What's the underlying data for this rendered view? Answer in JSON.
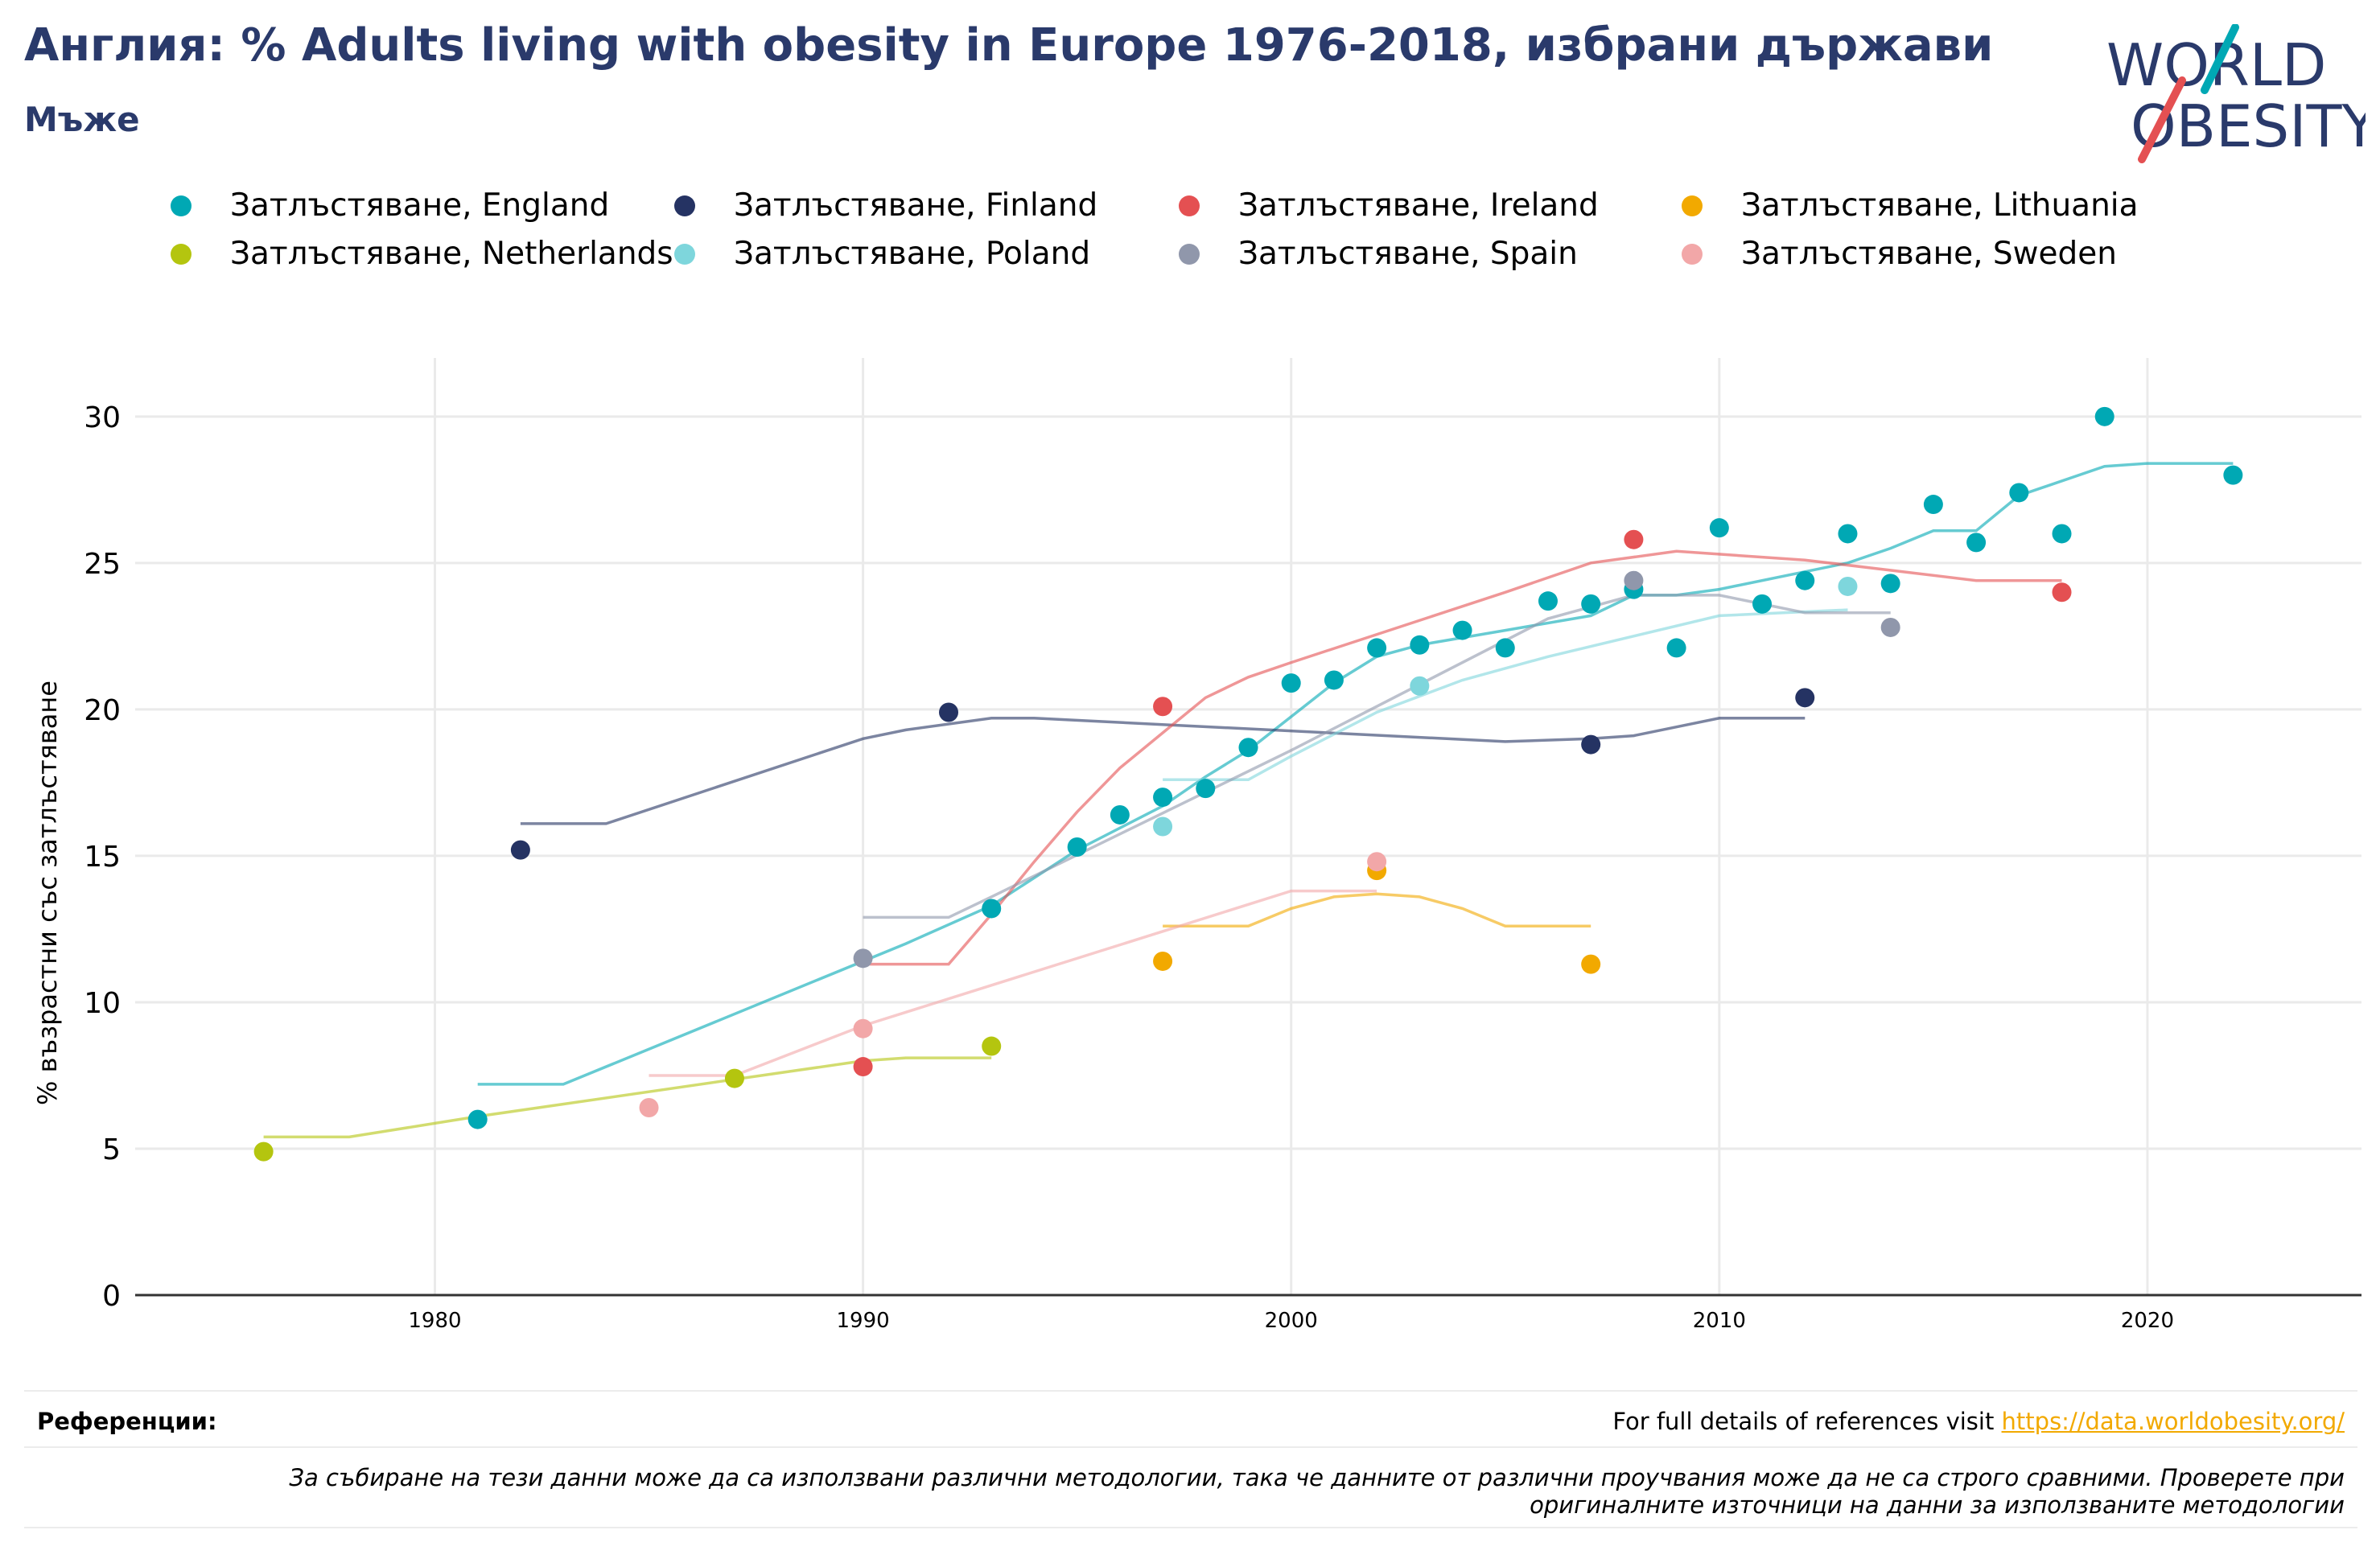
{
  "header": {
    "title": "Англия: % Adults living with obesity in Europe 1976-2018, избрани държави",
    "subtitle": "Мъже",
    "logo_line1": "WORLD",
    "logo_line2": "OBESITY"
  },
  "footer": {
    "references_label": "Референции:",
    "references_text": "For full details of references visit ",
    "references_link": "https://data.worldobesity.org/",
    "note": "За събиране на тези данни може да са използвани различни методологии, така че данните от различни проучвания може да не са строго сравними. Проверете при оригиналните източници на данни за използваните методологии"
  },
  "chart_data": {
    "type": "scatter",
    "title": "Англия: % Adults living with obesity in Europe 1976-2018, избрани държави",
    "subtitle": "Мъже",
    "xlabel": "",
    "ylabel": "% възрастни със затлъстяване",
    "xlim": [
      1973,
      2025
    ],
    "ylim": [
      0,
      32
    ],
    "xticks": [
      1980,
      1990,
      2000,
      2010,
      2020
    ],
    "yticks": [
      0,
      5,
      10,
      15,
      20,
      25,
      30
    ],
    "grid": true,
    "legend_position": "top",
    "series": [
      {
        "name": "Затлъстяване, England",
        "color": "#00a8b4",
        "points": [
          [
            1981,
            6
          ],
          [
            1993,
            13.2
          ],
          [
            1995,
            15.3
          ],
          [
            1996,
            16.4
          ],
          [
            1997,
            17
          ],
          [
            1998,
            17.3
          ],
          [
            1999,
            18.7
          ],
          [
            2000,
            20.9
          ],
          [
            2001,
            21
          ],
          [
            2002,
            22.1
          ],
          [
            2003,
            22.2
          ],
          [
            2004,
            22.7
          ],
          [
            2005,
            22.1
          ],
          [
            2006,
            23.7
          ],
          [
            2007,
            23.6
          ],
          [
            2008,
            24.1
          ],
          [
            2009,
            22.1
          ],
          [
            2010,
            26.2
          ],
          [
            2011,
            23.6
          ],
          [
            2012,
            24.4
          ],
          [
            2013,
            26
          ],
          [
            2014,
            24.3
          ],
          [
            2015,
            27
          ],
          [
            2016,
            25.7
          ],
          [
            2017,
            27.4
          ],
          [
            2018,
            26
          ],
          [
            2019,
            30
          ],
          [
            2022,
            28
          ]
        ],
        "trend": [
          [
            1981,
            7.2
          ],
          [
            1983,
            7.2
          ],
          [
            1991,
            12
          ],
          [
            1993,
            13.3
          ],
          [
            1995,
            15.2
          ],
          [
            1997,
            16.7
          ],
          [
            1998,
            17.7
          ],
          [
            1999,
            18.6
          ],
          [
            2001,
            20.9
          ],
          [
            2002,
            21.8
          ],
          [
            2003,
            22.2
          ],
          [
            2005,
            22.7
          ],
          [
            2007,
            23.2
          ],
          [
            2008,
            23.9
          ],
          [
            2009,
            23.9
          ],
          [
            2010,
            24.1
          ],
          [
            2013,
            25
          ],
          [
            2014,
            25.5
          ],
          [
            2015,
            26.1
          ],
          [
            2016,
            26.1
          ],
          [
            2017,
            27.3
          ],
          [
            2019,
            28.3
          ],
          [
            2020,
            28.4
          ],
          [
            2022,
            28.4
          ]
        ]
      },
      {
        "name": "Затлъстяване, Finland",
        "color": "#253363",
        "points": [
          [
            1982,
            15.2
          ],
          [
            1992,
            19.9
          ],
          [
            2007,
            18.8
          ],
          [
            2012,
            20.4
          ]
        ],
        "trend": [
          [
            1982,
            16.1
          ],
          [
            1984,
            16.1
          ],
          [
            1990,
            19
          ],
          [
            1991,
            19.3
          ],
          [
            1993,
            19.7
          ],
          [
            1994,
            19.7
          ],
          [
            2005,
            18.9
          ],
          [
            2007,
            19
          ],
          [
            2008,
            19.1
          ],
          [
            2009,
            19.4
          ],
          [
            2010,
            19.7
          ],
          [
            2012,
            19.7
          ]
        ]
      },
      {
        "name": "Затлъстяване, Ireland",
        "color": "#e45052",
        "points": [
          [
            1990,
            7.8
          ],
          [
            1997,
            20.1
          ],
          [
            2008,
            25.8
          ],
          [
            2018,
            24
          ]
        ],
        "trend": [
          [
            1990,
            11.3
          ],
          [
            1992,
            11.3
          ],
          [
            1993,
            13
          ],
          [
            1994,
            14.8
          ],
          [
            1995,
            16.5
          ],
          [
            1996,
            18
          ],
          [
            1997,
            19.2
          ],
          [
            1998,
            20.4
          ],
          [
            1999,
            21.1
          ],
          [
            2000,
            21.6
          ],
          [
            2005,
            24
          ],
          [
            2007,
            25
          ],
          [
            2009,
            25.4
          ],
          [
            2012,
            25.1
          ],
          [
            2016,
            24.4
          ],
          [
            2018,
            24.4
          ]
        ]
      },
      {
        "name": "Затлъстяване, Lithuania",
        "color": "#f2a900",
        "points": [
          [
            1997,
            11.4
          ],
          [
            2002,
            14.5
          ],
          [
            2007,
            11.3
          ]
        ],
        "trend": [
          [
            1997,
            12.6
          ],
          [
            1999,
            12.6
          ],
          [
            2000,
            13.2
          ],
          [
            2001,
            13.6
          ],
          [
            2002,
            13.7
          ],
          [
            2003,
            13.6
          ],
          [
            2004,
            13.2
          ],
          [
            2005,
            12.6
          ],
          [
            2007,
            12.6
          ]
        ]
      },
      {
        "name": "Затлъстяване, Netherlands",
        "color": "#b4c50f",
        "points": [
          [
            1976,
            4.9
          ],
          [
            1987,
            7.4
          ],
          [
            1993,
            8.5
          ]
        ],
        "trend": [
          [
            1976,
            5.4
          ],
          [
            1978,
            5.4
          ],
          [
            1981,
            6.1
          ],
          [
            1990,
            8
          ],
          [
            1991,
            8.1
          ],
          [
            1993,
            8.1
          ]
        ]
      },
      {
        "name": "Затлъстяване, Poland",
        "color": "#7ed6dc",
        "points": [
          [
            1997,
            16
          ],
          [
            2003,
            20.8
          ],
          [
            2013,
            24.2
          ]
        ],
        "trend": [
          [
            1997,
            17.6
          ],
          [
            1999,
            17.6
          ],
          [
            2000,
            18.4
          ],
          [
            2002,
            19.9
          ],
          [
            2004,
            21
          ],
          [
            2006,
            21.8
          ],
          [
            2010,
            23.2
          ],
          [
            2013,
            23.4
          ]
        ]
      },
      {
        "name": "Затлъстяване, Spain",
        "color": "#9097ab",
        "points": [
          [
            1990,
            11.5
          ],
          [
            2008,
            24.4
          ],
          [
            2014,
            22.8
          ]
        ],
        "trend": [
          [
            1990,
            12.9
          ],
          [
            1992,
            12.9
          ],
          [
            1993,
            13.6
          ],
          [
            2000,
            18.6
          ],
          [
            2006,
            23.1
          ],
          [
            2008,
            23.9
          ],
          [
            2010,
            23.9
          ],
          [
            2012,
            23.3
          ],
          [
            2014,
            23.3
          ]
        ]
      },
      {
        "name": "Затлъстяване, Sweden",
        "color": "#f2a7a8",
        "points": [
          [
            1985,
            6.4
          ],
          [
            1990,
            9.1
          ],
          [
            2002,
            14.8
          ]
        ],
        "trend": [
          [
            1985,
            7.5
          ],
          [
            1987,
            7.5
          ],
          [
            1990,
            9.2
          ],
          [
            2000,
            13.8
          ],
          [
            2002,
            13.8
          ]
        ]
      }
    ]
  }
}
